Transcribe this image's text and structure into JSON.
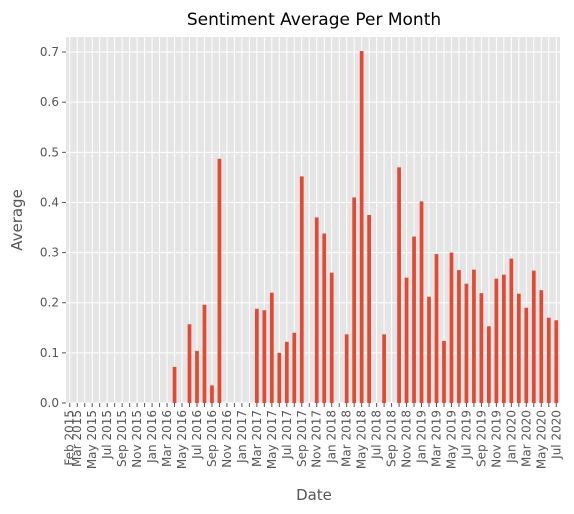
{
  "chart_data": {
    "type": "bar",
    "title": "Sentiment Average Per Month",
    "xlabel": "Date",
    "ylabel": "Average",
    "ylim": [
      0,
      0.73
    ],
    "yticks": [
      0.0,
      0.1,
      0.2,
      0.3,
      0.4,
      0.5,
      0.6,
      0.7
    ],
    "ytick_labels": [
      "0.0",
      "0.1",
      "0.2",
      "0.3",
      "0.4",
      "0.5",
      "0.6",
      "0.7"
    ],
    "grid": true,
    "bar_color": "#e24a33",
    "plot_background": "#e5e5e5",
    "categories": [
      "Feb 2015",
      "Mar 2015",
      "Apr 2015",
      "May 2015",
      "Jun 2015",
      "Jul 2015",
      "Aug 2015",
      "Sep 2015",
      "Oct 2015",
      "Nov 2015",
      "Dec 2015",
      "Jan 2016",
      "Feb 2016",
      "Mar 2016",
      "Apr 2016",
      "May 2016",
      "Jun 2016",
      "Jul 2016",
      "Aug 2016",
      "Sep 2016",
      "Oct 2016",
      "Nov 2016",
      "Dec 2016",
      "Jan 2017",
      "Feb 2017",
      "Mar 2017",
      "Apr 2017",
      "May 2017",
      "Jun 2017",
      "Jul 2017",
      "Aug 2017",
      "Sep 2017",
      "Oct 2017",
      "Nov 2017",
      "Dec 2017",
      "Jan 2018",
      "Feb 2018",
      "Mar 2018",
      "Apr 2018",
      "May 2018",
      "Jun 2018",
      "Jul 2018",
      "Aug 2018",
      "Sep 2018",
      "Oct 2018",
      "Nov 2018",
      "Dec 2018",
      "Jan 2019",
      "Feb 2019",
      "Mar 2019",
      "Apr 2019",
      "May 2019",
      "Jun 2019",
      "Jul 2019",
      "Aug 2019",
      "Sep 2019",
      "Oct 2019",
      "Nov 2019",
      "Dec 2019",
      "Jan 2020",
      "Feb 2020",
      "Mar 2020",
      "Apr 2020",
      "May 2020",
      "Jun 2020",
      "Jul 2020"
    ],
    "xtick_labels": [
      "Feb 2015",
      "Mar 2015",
      "",
      "May 2015",
      "",
      "Jul 2015",
      "",
      "Sep 2015",
      "",
      "Nov 2015",
      "",
      "Jan 2016",
      "",
      "Mar 2016",
      "",
      "May 2016",
      "",
      "Jul 2016",
      "",
      "Sep 2016",
      "",
      "Nov 2016",
      "",
      "Jan 2017",
      "",
      "Mar 2017",
      "",
      "May 2017",
      "",
      "Jul 2017",
      "",
      "Sep 2017",
      "",
      "Nov 2017",
      "",
      "Jan 2018",
      "",
      "Mar 2018",
      "",
      "May 2018",
      "",
      "Jul 2018",
      "",
      "Sep 2018",
      "",
      "Nov 2018",
      "",
      "Jan 2019",
      "",
      "Mar 2019",
      "",
      "May 2019",
      "",
      "Jul 2019",
      "",
      "Sep 2019",
      "",
      "Nov 2019",
      "",
      "Jan 2020",
      "",
      "Mar 2020",
      "",
      "May 2020",
      "",
      "Jul 2020"
    ],
    "values": [
      0,
      0,
      0,
      0,
      0,
      0,
      0,
      0,
      0,
      0,
      0,
      0,
      0,
      0,
      0.072,
      0,
      0.157,
      0.104,
      0.196,
      0.035,
      0.487,
      0,
      0,
      0,
      0,
      0.188,
      0.185,
      0.22,
      0.1,
      0.122,
      0.14,
      0.452,
      0,
      0.37,
      0.338,
      0.26,
      0,
      0.137,
      0.41,
      0.702,
      0.375,
      0,
      0.137,
      0,
      0.47,
      0.25,
      0.332,
      0.402,
      0.212,
      0.297,
      0.124,
      0.3,
      0.265,
      0.238,
      0.266,
      0.219,
      0.153,
      0.248,
      0.256,
      0.288,
      0.218,
      0.19,
      0.264,
      0.225,
      0.17,
      0.165
    ]
  }
}
